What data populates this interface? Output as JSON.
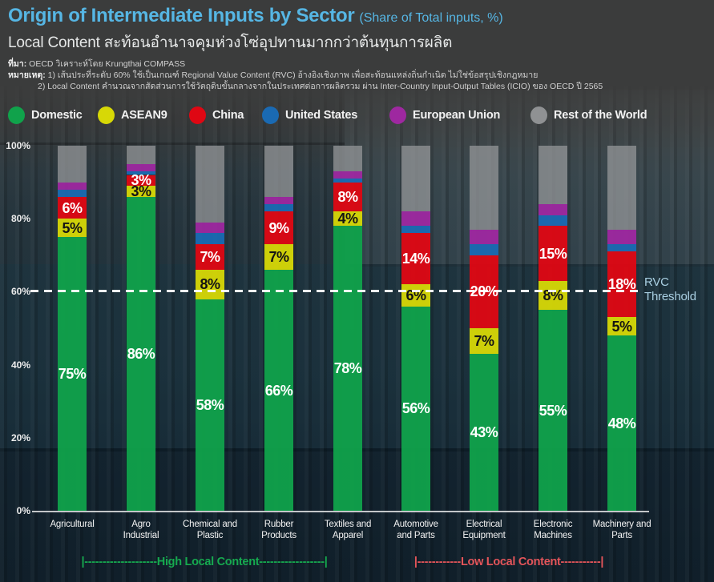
{
  "header": {
    "title": "Origin of Intermediate Inputs by Sector",
    "title_suffix": "(Share of Total inputs, %)",
    "subtitle": "Local Content สะท้อนอำนาจคุมห่วงโซ่อุปทานมากกว่าต้นทุนการผลิต",
    "source_label": "ที่มา:",
    "source_text": "OECD วิเคราะห์โดย Krungthai COMPASS",
    "note_label": "หมายเหตุ:",
    "note1": "1) เส้นประที่ระดับ 60% ใช้เป็นเกณฑ์ Regional Value Content (RVC) อ้างอิงเชิงภาพ เพื่อสะท้อนแหล่งถิ่นกำเนิด ไม่ใช่ข้อสรุปเชิงกฎหมาย",
    "note2": "2) Local Content คำนวณจากสัดส่วนการใช้วัตถุดิบขั้นกลางจากในประเทศต่อการผลิตรวม ผ่าน Inter-Country Input-Output Tables (ICIO) ของ OECD ปี 2565"
  },
  "colors": {
    "title_accent": "#56b6e4",
    "threshold_label": "#a9cfe2",
    "high_annotation": "#16a94f",
    "low_annotation": "#e4555a"
  },
  "legend": [
    {
      "label": "Domestic",
      "color": "#10a24b"
    },
    {
      "label": "ASEAN9",
      "color": "#d7d806"
    },
    {
      "label": "China",
      "color": "#df0713"
    },
    {
      "label": "United States",
      "color": "#1a6ab3"
    },
    {
      "label": "European Union",
      "color": "#9e28a0"
    },
    {
      "label": "Rest of the World",
      "color": "#8f9193"
    }
  ],
  "chart_data": {
    "type": "bar",
    "stacked": true,
    "title": "Origin of Intermediate Inputs by Sector (Share of Total inputs, %)",
    "xlabel": "",
    "ylabel": "Share of total inputs (%)",
    "ylim": [
      0,
      100
    ],
    "yticks": [
      {
        "label": "100%",
        "value": 100
      },
      {
        "label": "80%",
        "value": 80
      },
      {
        "label": "60%",
        "value": 60
      },
      {
        "label": "40%",
        "value": 40
      },
      {
        "label": "20%",
        "value": 20
      },
      {
        "label": "0%",
        "value": 0
      }
    ],
    "grid": false,
    "legend_position": "top",
    "categories": [
      "Agricultural",
      "Agro\nIndustrial",
      "Chemical and\nPlastic",
      "Rubber\nProducts",
      "Textiles and\nApparel",
      "Automotive\nand Parts",
      "Electrical\nEquipment",
      "Electronic\nMachines",
      "Machinery and\nParts"
    ],
    "series": [
      {
        "name": "Domestic",
        "color": "#10a24b",
        "show_labels": true,
        "label_color": "#ffffff",
        "values": [
          75,
          86,
          58,
          66,
          78,
          56,
          43,
          55,
          48
        ]
      },
      {
        "name": "ASEAN9",
        "color": "#d7d806",
        "show_labels": true,
        "label_color": "#141414",
        "values": [
          5,
          3,
          8,
          7,
          4,
          6,
          7,
          8,
          5
        ]
      },
      {
        "name": "China",
        "color": "#df0713",
        "show_labels": true,
        "label_color": "#ffffff",
        "values": [
          6,
          3,
          7,
          9,
          8,
          14,
          20,
          15,
          18
        ]
      },
      {
        "name": "United States",
        "color": "#1a6ab3",
        "show_labels": false,
        "values": [
          2,
          1,
          3,
          2,
          1,
          2,
          3,
          3,
          2
        ]
      },
      {
        "name": "European Union",
        "color": "#9e28a0",
        "show_labels": false,
        "values": [
          2,
          2,
          3,
          2,
          2,
          4,
          4,
          3,
          4
        ]
      },
      {
        "name": "Rest of the World",
        "color": "#8f9193",
        "show_labels": false,
        "values": [
          10,
          5,
          21,
          14,
          7,
          18,
          23,
          16,
          23
        ]
      }
    ],
    "threshold": {
      "value": 60,
      "label": "RVC Threshold",
      "style": "dashed-white"
    },
    "annotations": {
      "high_label": "|--------------------High Local Content------------------|",
      "high_span_categories": [
        "Agricultural",
        "Textiles and Apparel"
      ],
      "low_label": "|------------Low Local Content-----------|",
      "low_span_categories": [
        "Automotive and Parts",
        "Machinery and Parts"
      ]
    }
  }
}
